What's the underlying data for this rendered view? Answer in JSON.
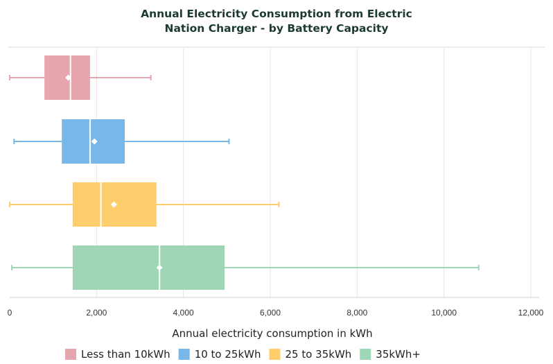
{
  "chart_data": {
    "type": "boxplot",
    "orientation": "horizontal",
    "title": [
      "Annual Electricity Consumption from Electric",
      "Nation Charger - by Battery Capacity"
    ],
    "xlabel": "Annual electricity consumption in kWh",
    "xlim": [
      0,
      12000
    ],
    "xticks": [
      0,
      2000,
      4000,
      6000,
      8000,
      10000,
      12000
    ],
    "xtick_labels": [
      "0",
      "2,000",
      "4,000",
      "6,000",
      "8,000",
      "10,000",
      "12,000"
    ],
    "grid": "vertical",
    "legend_position": "bottom",
    "series": [
      {
        "name": "Less than 10kWh",
        "color": "#e7a6ae",
        "whisker_low": 0,
        "q1": 800,
        "median": 1400,
        "mean": 1350,
        "q3": 1850,
        "whisker_high": 3250
      },
      {
        "name": "10 to 25kWh",
        "color": "#78b8e8",
        "whisker_low": 100,
        "q1": 1200,
        "median": 1850,
        "mean": 1950,
        "q3": 2650,
        "whisker_high": 5050
      },
      {
        "name": "25 to 35kWh",
        "color": "#fecd6c",
        "whisker_low": 0,
        "q1": 1450,
        "median": 2100,
        "mean": 2400,
        "q3": 3380,
        "whisker_high": 6200
      },
      {
        "name": "35kWh+",
        "color": "#9fd6b5",
        "whisker_low": 50,
        "q1": 1450,
        "median": 3450,
        "mean": 3450,
        "q3": 4950,
        "whisker_high": 10800
      }
    ]
  }
}
